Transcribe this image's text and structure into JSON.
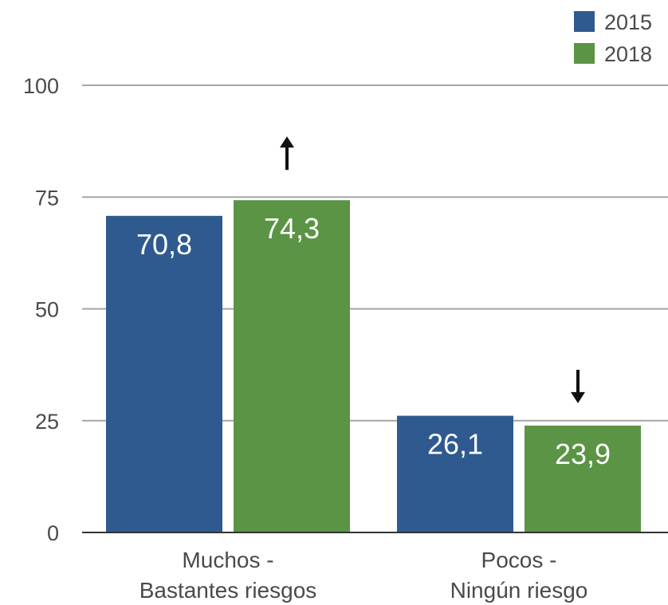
{
  "chart_data": {
    "type": "bar",
    "categories": [
      [
        "Muchos  -",
        "Bastantes riesgos"
      ],
      [
        "Pocos -",
        "Ningún riesgo"
      ]
    ],
    "series": [
      {
        "name": "2015",
        "values": [
          70.8,
          26.1
        ],
        "labels": [
          "70,8",
          "26,1"
        ],
        "color": "#2e5a8f"
      },
      {
        "name": "2018",
        "values": [
          74.3,
          23.9
        ],
        "labels": [
          "74,3",
          "23,9"
        ],
        "color": "#5a9444"
      }
    ],
    "y_ticks": [
      "0",
      "25",
      "50",
      "75",
      "100"
    ],
    "ylim": [
      0,
      100
    ],
    "grid": true,
    "legend_position": "top-right",
    "trend_arrows": [
      "up",
      "down"
    ]
  }
}
